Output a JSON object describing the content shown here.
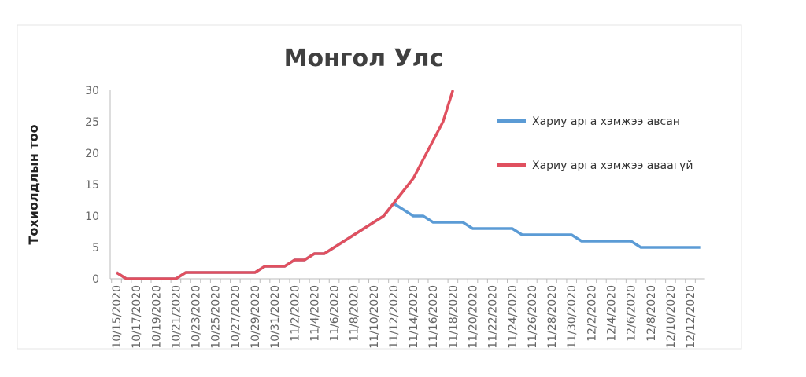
{
  "chart_data": {
    "type": "line",
    "title": "Монгол Улс",
    "y_label": "Тохиолдлын тоо",
    "categories": [
      "10/15/2020",
      null,
      "10/17/2020",
      null,
      "10/19/2020",
      null,
      "10/21/2020",
      null,
      "10/23/2020",
      null,
      "10/25/2020",
      null,
      "10/27/2020",
      null,
      "10/29/2020",
      null,
      "10/31/2020",
      null,
      "11/2/2020",
      null,
      "11/4/2020",
      null,
      "11/6/2020",
      null,
      "11/8/2020",
      null,
      "11/10/2020",
      null,
      "11/12/2020",
      null,
      "11/14/2020",
      null,
      "11/16/2020",
      null,
      "11/18/2020",
      null,
      "11/20/2020",
      null,
      "11/22/2020",
      null,
      "11/24/2020",
      null,
      "11/26/2020",
      null,
      "11/28/2020",
      null,
      "11/30/2020",
      null,
      "12/2/2020",
      null,
      "12/4/2020",
      null,
      "12/6/2020",
      null,
      "12/8/2020",
      null,
      "12/10/2020",
      null,
      "12/12/2020",
      null
    ],
    "series": [
      {
        "name": "Хариу арга хэмжээ авсан",
        "color": "#5b9bd5",
        "values": [
          1,
          0,
          0,
          0,
          0,
          0,
          0,
          1,
          1,
          1,
          1,
          1,
          1,
          1,
          1,
          2,
          2,
          2,
          3,
          3,
          4,
          4,
          5,
          6,
          7,
          8,
          9,
          10,
          12,
          11,
          10,
          10,
          9,
          9,
          9,
          9,
          8,
          8,
          8,
          8,
          8,
          7,
          7,
          7,
          7,
          7,
          7,
          6,
          6,
          6,
          6,
          6,
          6,
          5,
          5,
          5,
          5,
          5,
          5,
          5
        ]
      },
      {
        "name": "Хариу арга хэмжээ аваагүй",
        "color": "#e0505f",
        "values": [
          1,
          0,
          0,
          0,
          0,
          0,
          0,
          1,
          1,
          1,
          1,
          1,
          1,
          1,
          1,
          2,
          2,
          2,
          3,
          3,
          4,
          4,
          5,
          6,
          7,
          8,
          9,
          10,
          12,
          14,
          16,
          19,
          22,
          25,
          30,
          null,
          null,
          null,
          null,
          null,
          null,
          null,
          null,
          null,
          null,
          null,
          null,
          null,
          null,
          null,
          null,
          null,
          null,
          null,
          null,
          null,
          null,
          null,
          null,
          null
        ]
      }
    ],
    "ylim": [
      0,
      30
    ],
    "yticks": [
      0,
      5,
      10,
      15,
      20,
      25,
      30
    ],
    "grid": false,
    "legend": "right"
  }
}
